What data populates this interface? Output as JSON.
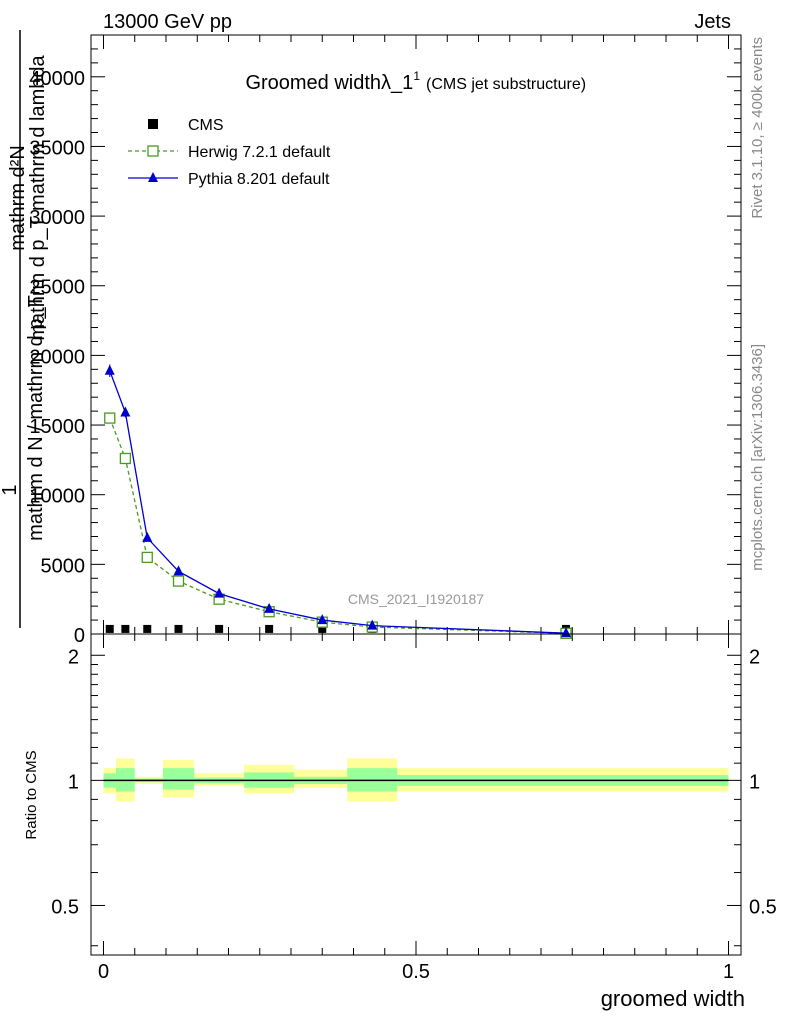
{
  "header": {
    "left": "13000 GeV pp",
    "right": "Jets"
  },
  "side_labels": {
    "rivet": "Rivet 3.1.10, ≥ 400k events",
    "mcplots": "mcplots.cern.ch [arXiv:1306.3436]"
  },
  "chart_data": [
    {
      "type": "line",
      "title": "Groomed widthλ_1",
      "title_superscript": "1",
      "subtitle": "(CMS jet substructure)",
      "watermark": "CMS_2021_I1920187",
      "ylabel_top": "mathrm d²N",
      "ylabel_mid": "mathrm d p_T mathrm d lambda",
      "ylabel_num": "1",
      "ylabel_den": "mathrm d N / mathrm d p_T",
      "xlim": [
        -0.02,
        1.02
      ],
      "ylim": [
        0,
        43000
      ],
      "yticks": [
        0,
        5000,
        10000,
        15000,
        20000,
        25000,
        30000,
        35000,
        40000
      ],
      "ytick_labels": [
        "0",
        "5000",
        "10000",
        "15000",
        "20000",
        "25000",
        "30000",
        "35000",
        "40000"
      ],
      "legend_position": "top-left",
      "series": [
        {
          "name": "CMS",
          "color": "#000000",
          "marker": "square-filled",
          "x": [
            0.01,
            0.035,
            0.07,
            0.12,
            0.185,
            0.265,
            0.35,
            0.43,
            0.74
          ],
          "y": [
            5,
            5,
            5,
            5,
            5,
            5,
            5,
            5,
            5
          ]
        },
        {
          "name": "Herwig 7.2.1 default",
          "color": "#4a9a20",
          "marker": "square-open",
          "line": "dashed",
          "x": [
            0.01,
            0.035,
            0.07,
            0.12,
            0.185,
            0.265,
            0.35,
            0.43,
            0.74
          ],
          "y": [
            15500,
            12600,
            5500,
            3800,
            2500,
            1600,
            850,
            500,
            50
          ],
          "err": [
            300,
            300,
            200,
            150,
            100,
            80,
            60,
            40,
            20
          ]
        },
        {
          "name": "Pythia 8.201 default",
          "color": "#0000cc",
          "marker": "triangle-filled",
          "line": "solid",
          "x": [
            0.01,
            0.035,
            0.07,
            0.12,
            0.185,
            0.265,
            0.35,
            0.43,
            0.74
          ],
          "y": [
            18900,
            15900,
            6900,
            4500,
            2900,
            1800,
            1000,
            600,
            60
          ],
          "err": [
            450,
            350,
            200,
            150,
            100,
            80,
            60,
            40,
            20
          ]
        }
      ]
    },
    {
      "type": "area",
      "ylabel": "Ratio to CMS",
      "xlabel": "groomed width",
      "xlim": [
        -0.02,
        1.02
      ],
      "ylim": [
        0.38,
        2.25
      ],
      "xticks": [
        0,
        0.5,
        1
      ],
      "xtick_labels": [
        "0",
        "0.5",
        "1"
      ],
      "yticks": [
        0.5,
        1,
        2
      ],
      "ytick_labels": [
        "0.5",
        "1",
        "2"
      ],
      "reference_line": 1,
      "bands": {
        "edges": [
          0.0,
          0.02,
          0.05,
          0.095,
          0.145,
          0.225,
          0.305,
          0.39,
          0.47,
          1.0
        ],
        "outer_low": [
          0.93,
          0.89,
          0.98,
          0.91,
          0.97,
          0.93,
          0.96,
          0.89,
          0.94
        ],
        "outer_high": [
          1.07,
          1.13,
          1.02,
          1.12,
          1.04,
          1.09,
          1.06,
          1.13,
          1.07
        ],
        "inner_low": [
          0.96,
          0.94,
          0.99,
          0.95,
          0.985,
          0.96,
          0.98,
          0.94,
          0.97
        ],
        "inner_high": [
          1.04,
          1.07,
          1.01,
          1.07,
          1.015,
          1.045,
          1.02,
          1.07,
          1.03
        ],
        "outer_color": "#ffff99",
        "inner_color": "#99ff99"
      }
    }
  ]
}
